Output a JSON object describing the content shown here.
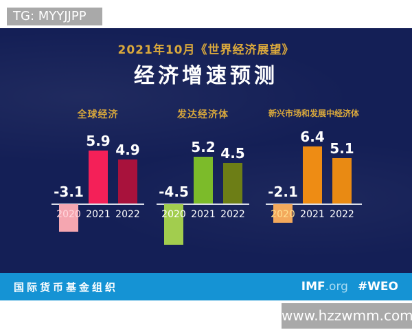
{
  "page": {
    "top_watermark": "TG: MYYJJPP",
    "bottom_watermark": "www.hzzwmm.com"
  },
  "header": {
    "subtitle": "2021年10月《世界经济展望》",
    "title": "经济增速预测"
  },
  "chart_data": {
    "type": "bar",
    "title": "经济增速预测",
    "subtitle": "2021年10月《世界经济展望》",
    "unit": "percent",
    "categories": [
      "2020",
      "2021",
      "2022"
    ],
    "groups": [
      {
        "name": "全球经济",
        "values": [
          -3.1,
          5.9,
          4.9
        ],
        "bar_colors": [
          "#f5a6b0",
          "#f42058",
          "#a8123c"
        ],
        "first_year_label_color": "#ffd8de"
      },
      {
        "name": "发达经济体",
        "values": [
          -4.5,
          5.2,
          4.5
        ],
        "bar_colors": [
          "#a2cd4e",
          "#7cbb2a",
          "#6d7e16"
        ],
        "first_year_label_color": "#ffffff"
      },
      {
        "name": "新兴市场和发展中经济体",
        "values": [
          -2.1,
          6.4,
          5.1
        ],
        "bar_colors": [
          "#f3a95c",
          "#ee8c14",
          "#e98a13"
        ],
        "first_year_label_color": "#ffdf90"
      }
    ],
    "value_label_color": "#ffffff",
    "year_label_color": "#ffffff",
    "axis_line_color": "#d9dde9",
    "layout_hint": "three grouped mini bar charts sharing a zero baseline; values labeled above positive bars and left-above baseline for negative 2020 bars; 2020 year label printed inside negative bar"
  },
  "footer": {
    "org_name": "国际货币基金组织",
    "imf_brand": "IMF",
    "imf_domain": ".org",
    "hashtag": "#WEO"
  },
  "colors": {
    "canvas_bg": "#141f56",
    "accent_gold": "#d9a83c",
    "footer_bg": "#1593d4",
    "footer_domain_color": "#aadcf2",
    "watermark_gray": "#a9a9a9"
  }
}
